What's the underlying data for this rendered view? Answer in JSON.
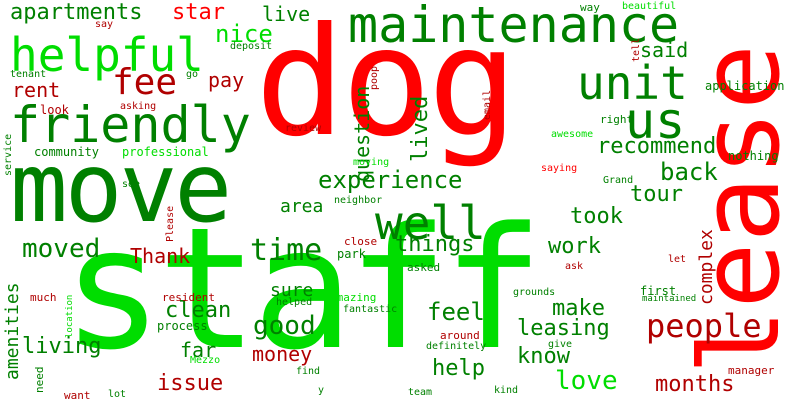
{
  "colors": {
    "red": "#ff0000",
    "dark_red": "#b00000",
    "green": "#008000",
    "bright_green": "#00dd00",
    "dark_green": "#2e7d32",
    "background": "#ffffff"
  },
  "words": {
    "staff": "staff",
    "dog": "dog",
    "lease": "lease",
    "move": "move",
    "maintenance": "maintenance",
    "friendly": "friendly",
    "helpful": "helpful",
    "unit": "unit",
    "us": "us",
    "well": "well",
    "fee": "fee",
    "people": "people",
    "apartments": "apartments",
    "star": "star",
    "nice": "nice",
    "live": "live",
    "rent": "rent",
    "pay": "pay",
    "said": "said",
    "question": "question",
    "lived": "lived",
    "experience": "experience",
    "recommend": "recommend",
    "back": "back",
    "tour": "tour",
    "moved": "moved",
    "time": "time",
    "things": "things",
    "took": "took",
    "Thank": "Thank",
    "area": "area",
    "work": "work",
    "complex": "complex",
    "amenities": "amenities",
    "clean": "clean",
    "good": "good",
    "sure": "sure",
    "feel": "feel",
    "make": "make",
    "leasing": "leasing",
    "living": "living",
    "far": "far",
    "money": "money",
    "help": "help",
    "know": "know",
    "love": "love",
    "issue": "issue",
    "months": "months",
    "community": "community",
    "professional": "professional",
    "nothing": "nothing",
    "application": "application",
    "manager": "manager",
    "first": "first",
    "need": "need",
    "beautiful": "beautiful",
    "way": "way",
    "say": "say",
    "tenant": "tenant",
    "go": "go",
    "deposit": "deposit",
    "look": "look",
    "asking": "asking",
    "review": "review",
    "service": "service",
    "email": "email",
    "poop": "poop",
    "awesome": "awesome",
    "right": "right",
    "tell": "tell",
    "saying": "saying",
    "Grand": "Grand",
    "moving": "moving",
    "see": "see",
    "neighbor": "neighbor",
    "Please": "Please",
    "close": "close",
    "park": "park",
    "asked": "asked",
    "grounds": "grounds",
    "ask": "ask",
    "let": "let",
    "much": "much",
    "resident": "resident",
    "helped": "helped",
    "amazing": "amazing",
    "fantastic": "fantastic",
    "location": "location",
    "process": "process",
    "around": "around",
    "definitely": "definitely",
    "give": "give",
    "Mezzo": "Mezzo",
    "maintained": "maintained",
    "find": "find",
    "want": "want",
    "lot": "lot",
    "y": "y",
    "team": "team",
    "kind": "kind"
  }
}
